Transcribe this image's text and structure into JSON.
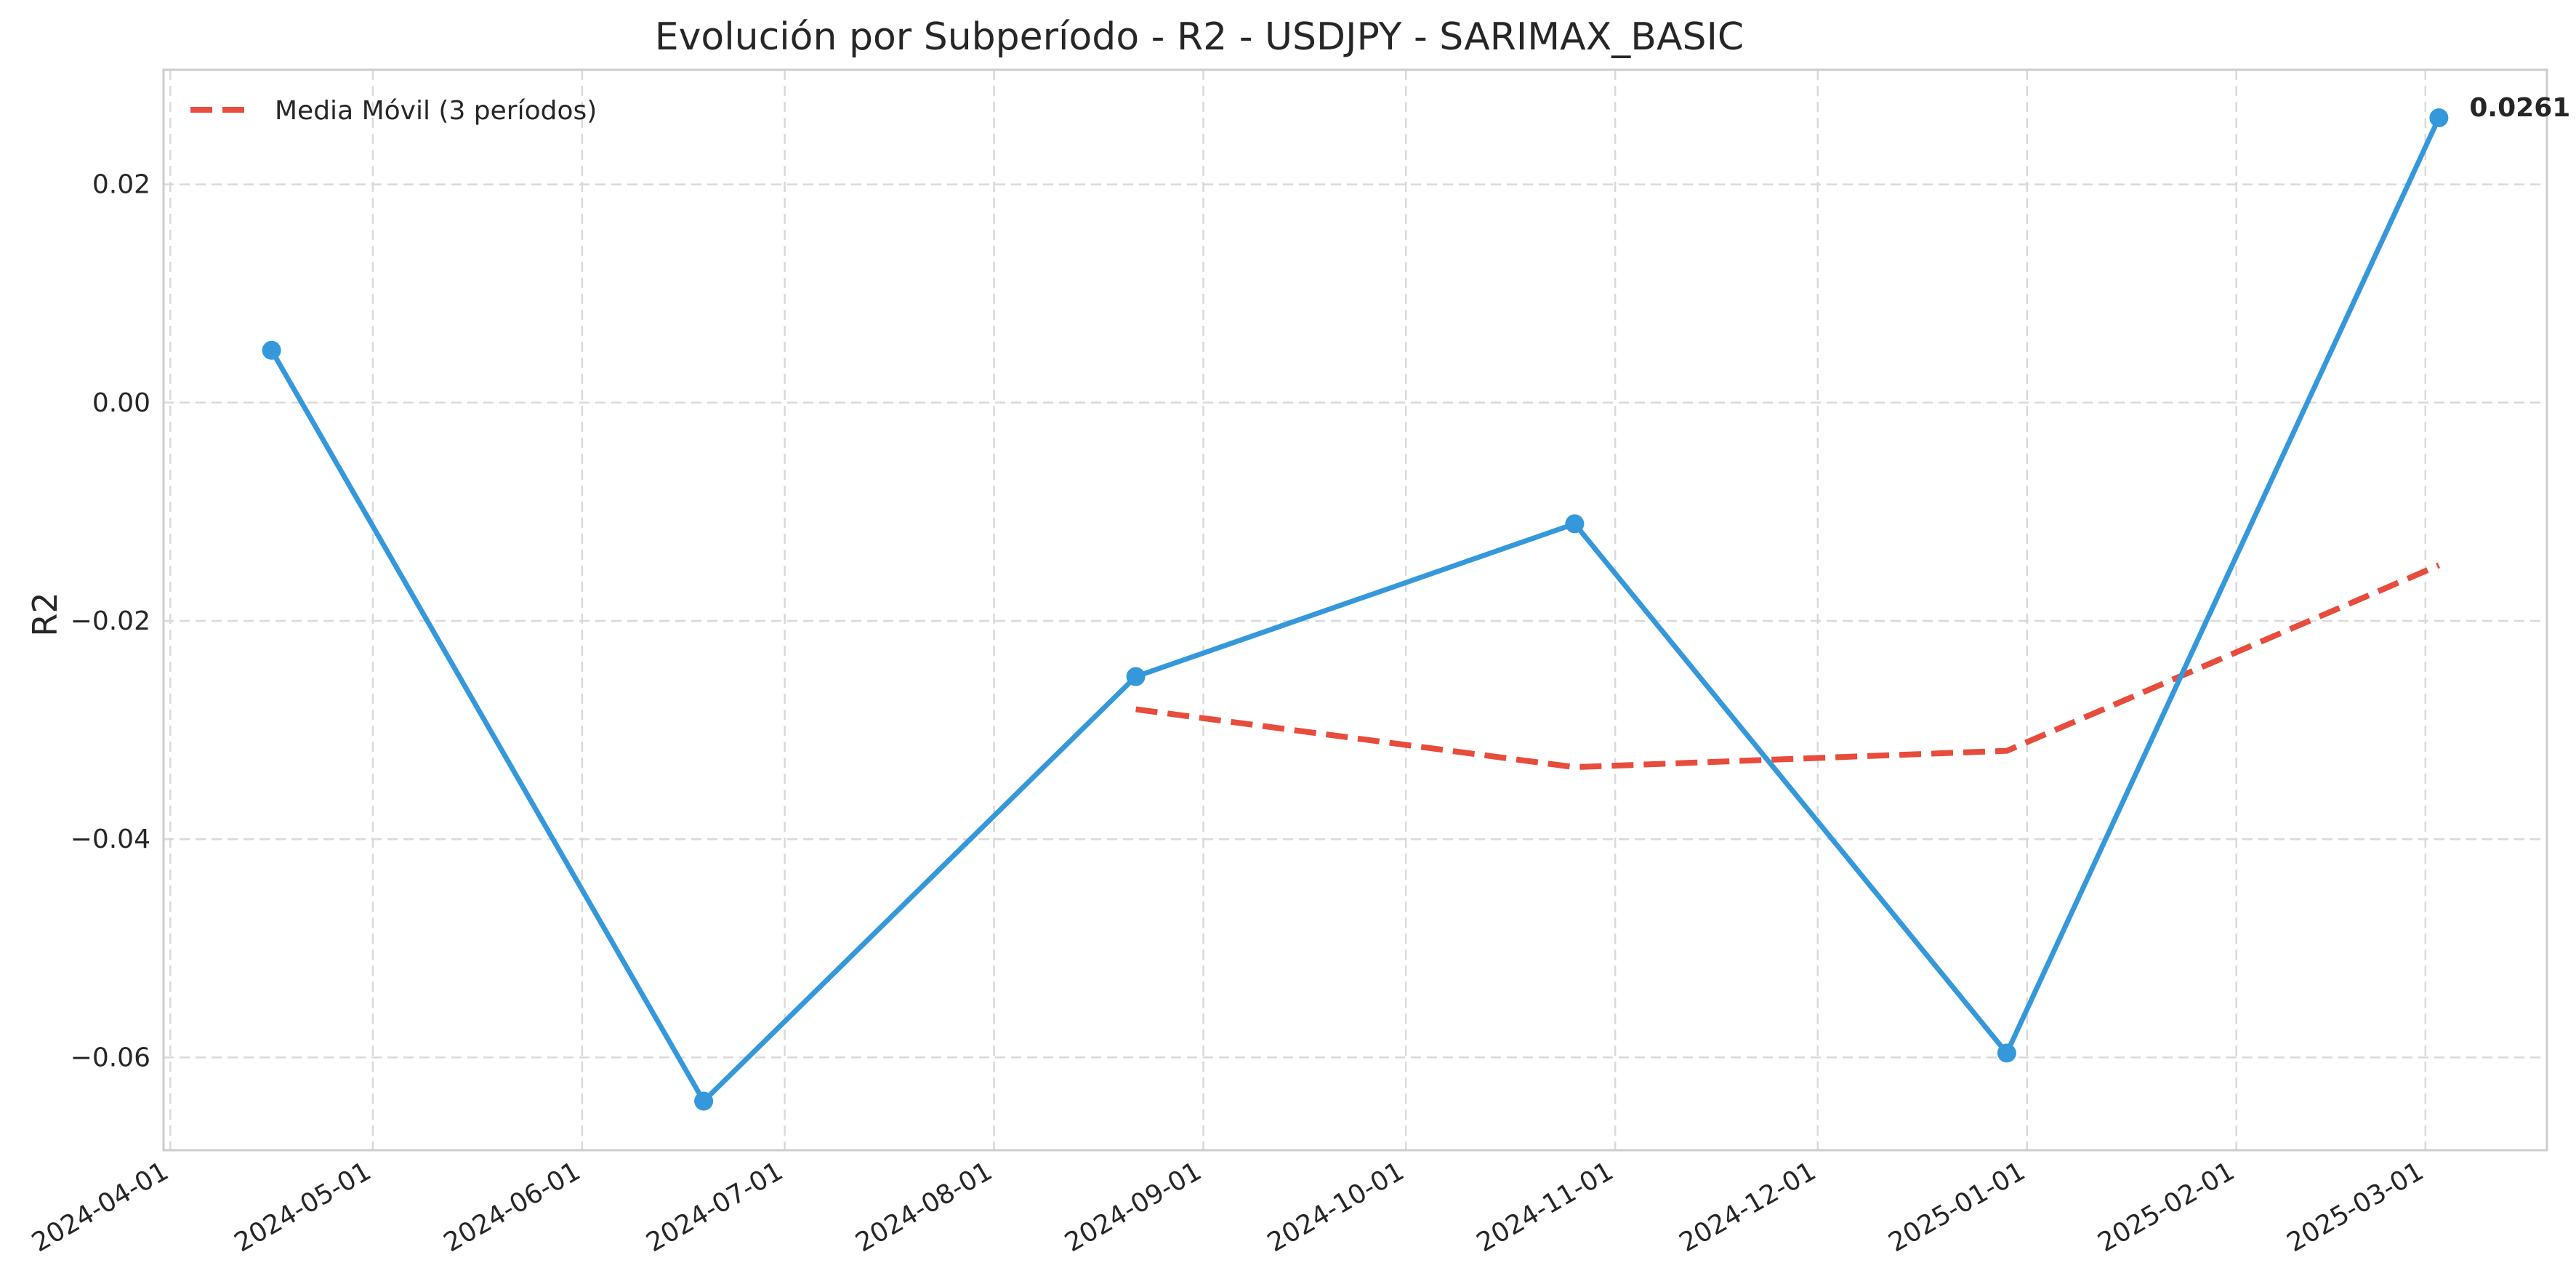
{
  "chart_data": {
    "type": "line",
    "title": "Evolución por Subperíodo - R2 - USDJPY - SARIMAX_BASIC",
    "xlabel": "",
    "ylabel": "R2",
    "x_ticks": [
      "2024-04-01",
      "2024-05-01",
      "2024-06-01",
      "2024-07-01",
      "2024-08-01",
      "2024-09-01",
      "2024-10-01",
      "2024-11-01",
      "2024-12-01",
      "2025-01-01",
      "2025-02-01",
      "2025-03-01"
    ],
    "y_ticks": [
      "0.02",
      "0.00",
      "−0.02",
      "−0.04",
      "−0.06"
    ],
    "y_tick_values": [
      0.02,
      0.0,
      -0.02,
      -0.04,
      -0.06
    ],
    "xlim": [
      "2024-03-31",
      "2025-03-19"
    ],
    "ylim": [
      -0.0685,
      0.0305
    ],
    "grid": true,
    "legend_position": "top-left",
    "series": [
      {
        "values_label": "R2",
        "color": "#3498db",
        "style": "solid-markers",
        "points": [
          {
            "x": "2024-04-16",
            "y": 0.0048
          },
          {
            "x": "2024-06-19",
            "y": -0.064
          },
          {
            "x": "2024-08-22",
            "y": -0.0251
          },
          {
            "x": "2024-10-26",
            "y": -0.0111
          },
          {
            "x": "2024-12-29",
            "y": -0.0596
          },
          {
            "x": "2025-03-03",
            "y": 0.0261
          }
        ]
      },
      {
        "name": "Media Móvil (3 períodos)",
        "color": "#e74c3c",
        "style": "dashed",
        "points": [
          {
            "x": "2024-08-22",
            "y": -0.0281
          },
          {
            "x": "2024-10-26",
            "y": -0.0334
          },
          {
            "x": "2024-12-29",
            "y": -0.0319
          },
          {
            "x": "2025-03-03",
            "y": -0.0149
          }
        ]
      }
    ],
    "annotations": [
      {
        "x": "2025-03-03",
        "y": 0.0261,
        "text": "0.0261"
      }
    ]
  }
}
